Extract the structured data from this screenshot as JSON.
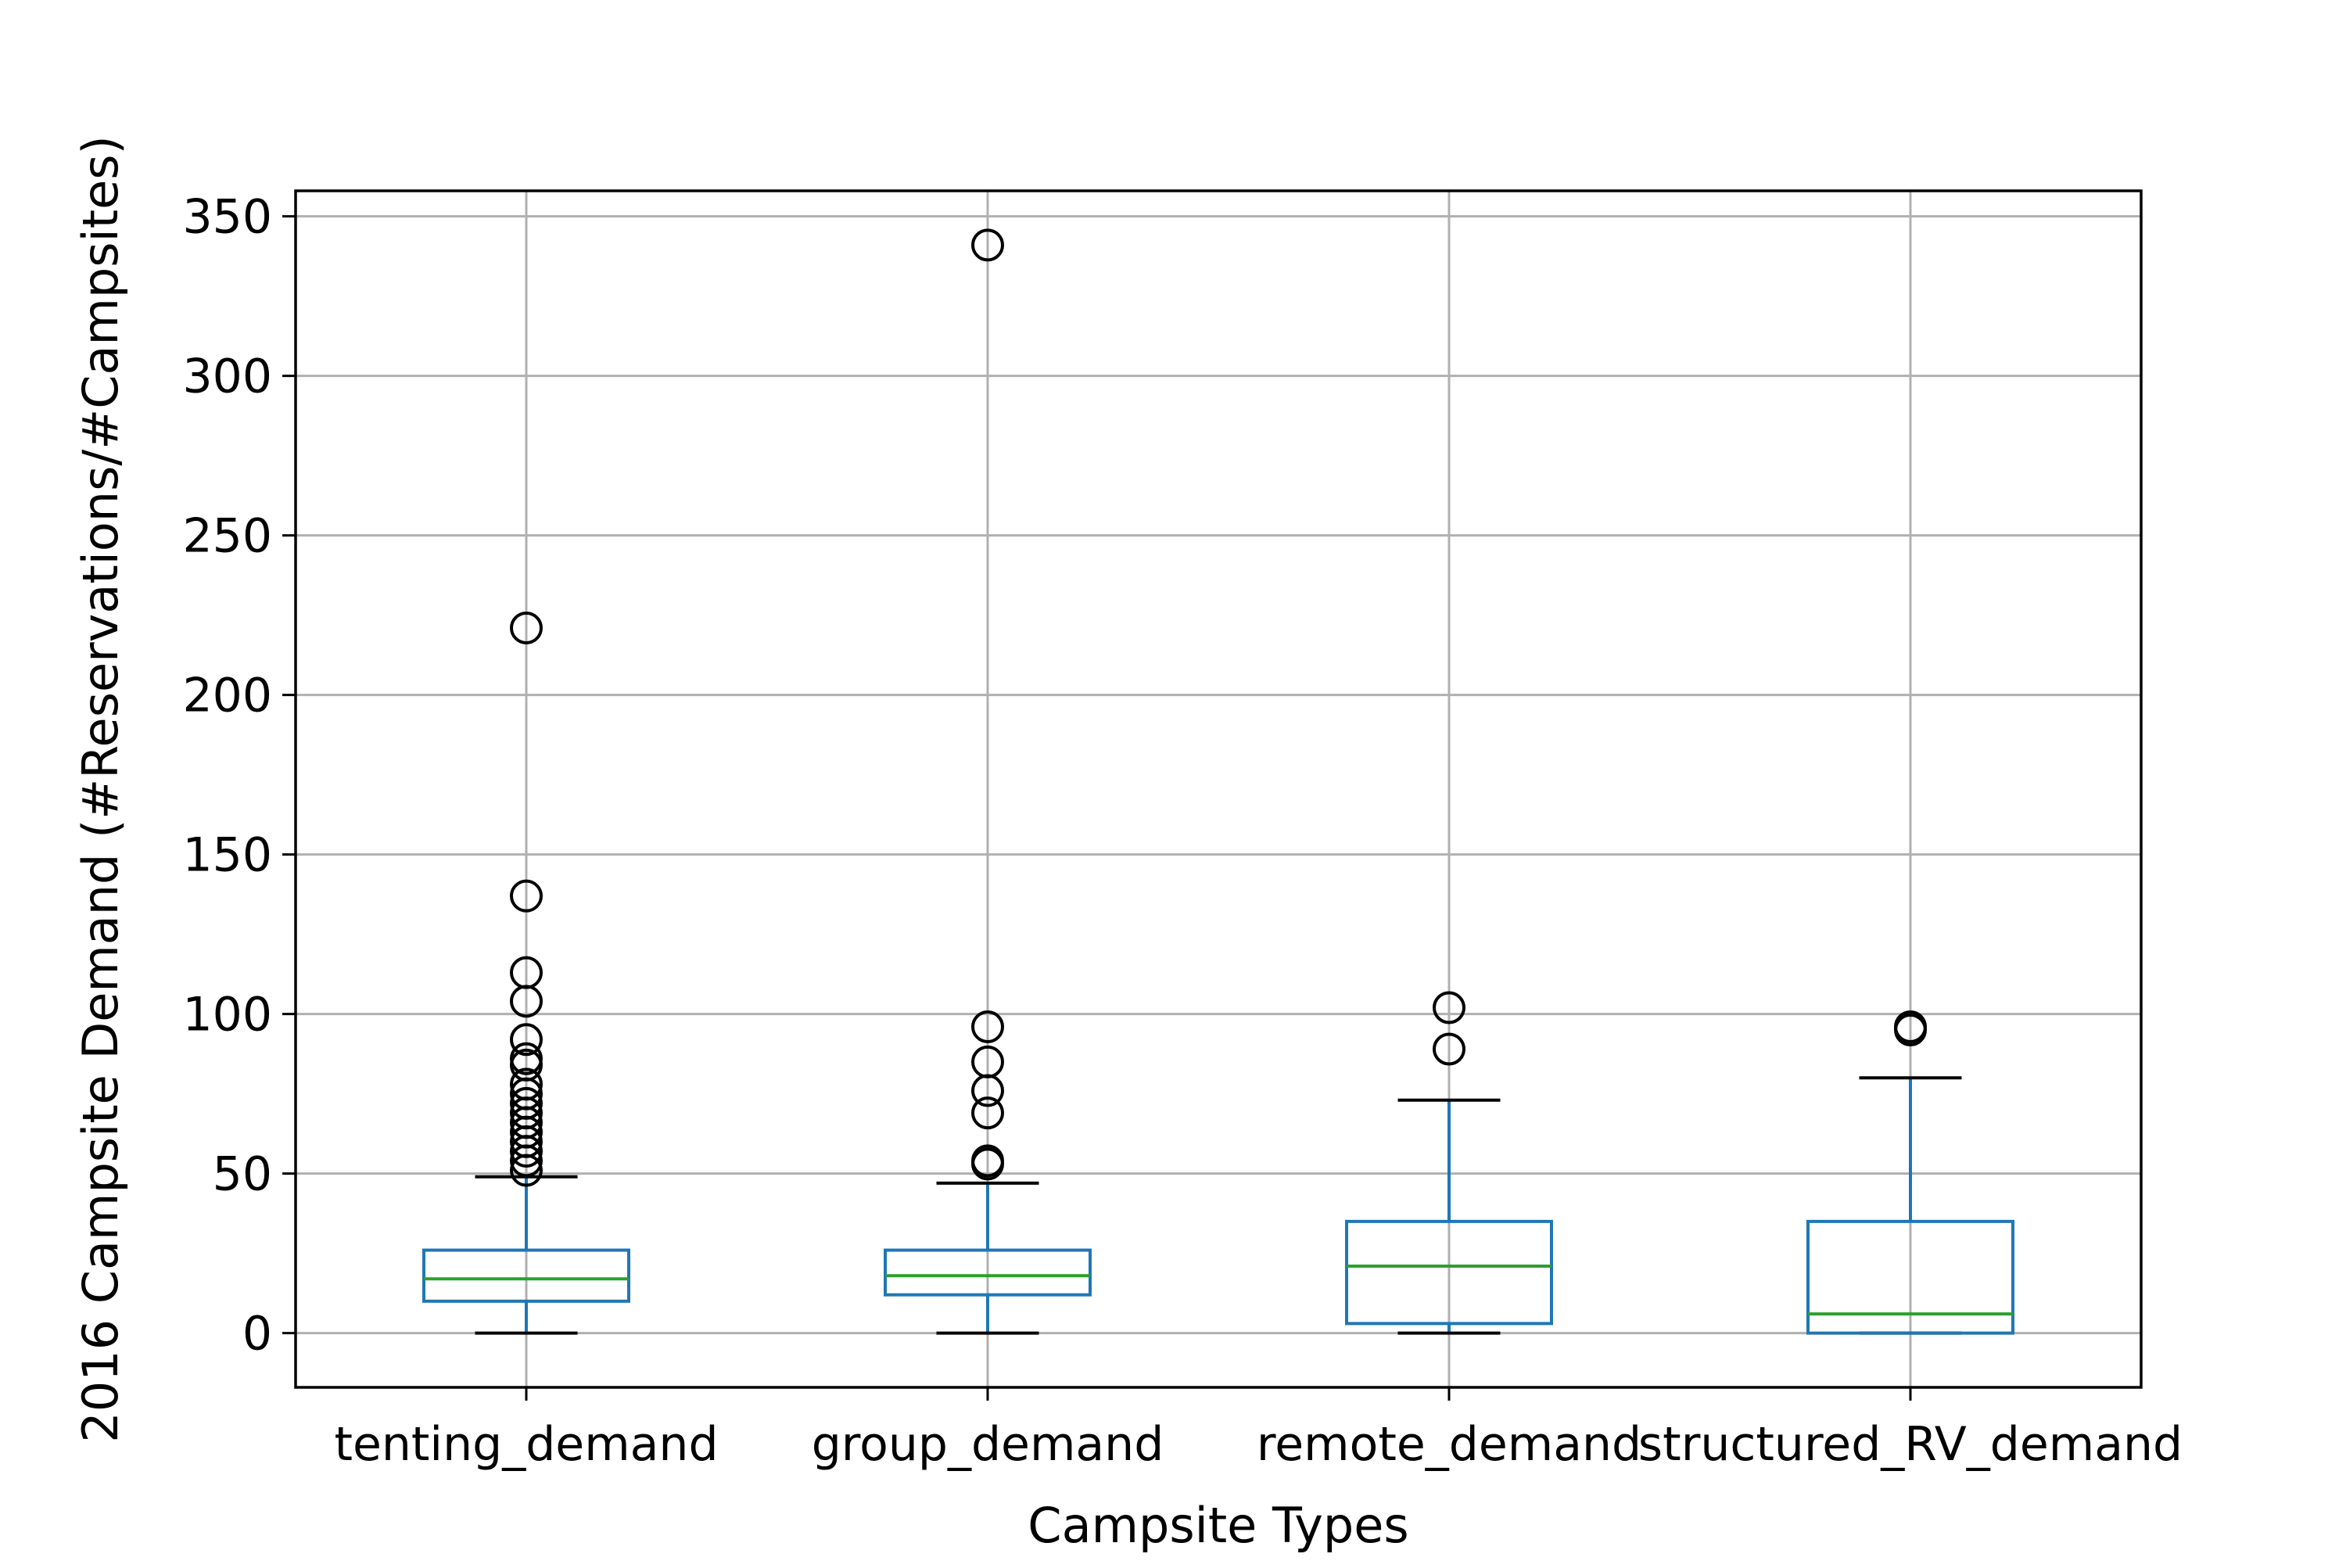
{
  "chart_data": {
    "type": "box",
    "title": "",
    "xlabel": "Campsite Types",
    "ylabel": "2016 Campsite Demand (#Reservations/#Campsites)",
    "ylim": [
      -17,
      358
    ],
    "yticks": [
      0,
      50,
      100,
      150,
      200,
      250,
      300,
      350
    ],
    "grid": true,
    "categories": [
      "tenting_demand",
      "group_demand",
      "remote_demand",
      "structured_RV_demand"
    ],
    "boxes": [
      {
        "category": "tenting_demand",
        "whisker_low": 0,
        "q1": 10,
        "median": 17,
        "q3": 26,
        "whisker_high": 49,
        "outliers": [
          221,
          137,
          113,
          104,
          92,
          86,
          84,
          78,
          75,
          72,
          69,
          66,
          63,
          60,
          57,
          54,
          51
        ]
      },
      {
        "category": "group_demand",
        "whisker_low": 0,
        "q1": 12,
        "median": 18,
        "q3": 26,
        "whisker_high": 47,
        "outliers": [
          341,
          96,
          85,
          76,
          69,
          54,
          53
        ]
      },
      {
        "category": "remote_demand",
        "whisker_low": 0,
        "q1": 3,
        "median": 21,
        "q3": 35,
        "whisker_high": 73,
        "outliers": [
          102,
          89
        ]
      },
      {
        "category": "structured_RV_demand",
        "whisker_low": 0,
        "q1": 0,
        "median": 6,
        "q3": 35,
        "whisker_high": 80,
        "outliers": [
          95,
          96
        ]
      }
    ],
    "colors": {
      "box": "#1f77b4",
      "median": "#2ca02c",
      "caps": "#000000",
      "outlier": "#000000",
      "grid": "#b0b0b0",
      "frame": "#000000"
    }
  }
}
